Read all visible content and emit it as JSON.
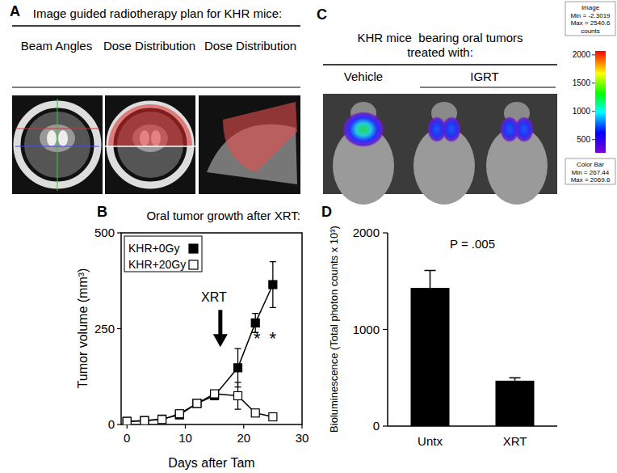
{
  "panels": {
    "A": {
      "label": "A",
      "title": "Image guided radiotherapy plan for KHR mice:",
      "columns": [
        "Beam Angles",
        "Dose Distribution",
        "Dose Distribution"
      ]
    },
    "C": {
      "label": "C",
      "title": "KHR mice  bearing oral tumors treated with:",
      "groups": [
        "Vehicle",
        "IGRT"
      ],
      "image_info": [
        "Image",
        "Min = -2.3019",
        "Max = 2540.6",
        "counts"
      ],
      "colorbar": {
        "title": "Color Bar",
        "labels": [
          "Min = 267.44",
          "Max = 2069.6"
        ],
        "range": [
          267.44,
          2069.6
        ],
        "ticks": [
          500,
          1000,
          1500,
          2000
        ]
      }
    }
  },
  "chart_data": [
    {
      "panel": "B",
      "type": "line",
      "title": "Oral tumor growth after XRT:",
      "x_label": "Days after Tam",
      "y_label": "Tumor volume (mm³)",
      "x": [
        0,
        3,
        6,
        9,
        12,
        15,
        19,
        22,
        25
      ],
      "xlim": [
        -1,
        30
      ],
      "xticks": [
        0,
        10,
        20,
        30
      ],
      "ylim": [
        0,
        500
      ],
      "yticks": [
        0,
        250,
        500
      ],
      "legend": "upper left",
      "marker": "square",
      "series": [
        {
          "name": "KHR+0Gy",
          "color": "#000000",
          "values": [
            8,
            10,
            14,
            25,
            55,
            75,
            148,
            265,
            365
          ],
          "errors": [
            2,
            3,
            4,
            5,
            6,
            10,
            50,
            25,
            60
          ]
        },
        {
          "name": "KHR+20Gy",
          "color": "#ffffff",
          "values": [
            8,
            10,
            13,
            28,
            55,
            80,
            75,
            30,
            20
          ],
          "errors": [
            2,
            3,
            4,
            8,
            6,
            8,
            35,
            5,
            3
          ]
        }
      ],
      "annotations": [
        {
          "text": "XRT",
          "x": 16,
          "y": 320
        },
        {
          "text": "*",
          "x": 22.3,
          "y": 230
        },
        {
          "text": "*",
          "x": 25,
          "y": 230
        }
      ]
    },
    {
      "panel": "D",
      "type": "bar",
      "y_label": "Bioluminescence (Total photon counts x 10³)",
      "categories": [
        "Untx",
        "XRT"
      ],
      "values": [
        1430,
        470
      ],
      "errors": [
        180,
        30
      ],
      "color": "#000000",
      "ylim": [
        0,
        2000
      ],
      "yticks": [
        0,
        1000,
        2000
      ],
      "annotations": [
        {
          "text": "P = .005",
          "y": 1840
        }
      ]
    }
  ]
}
